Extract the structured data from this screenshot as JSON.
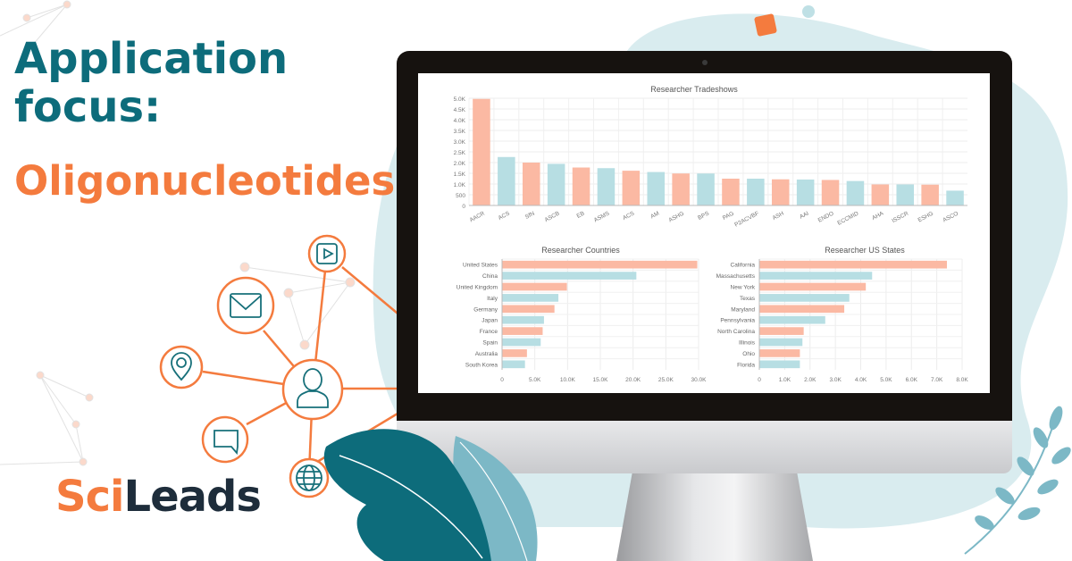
{
  "headline": {
    "line1": "Application",
    "line2": "focus:",
    "line3": "Oligonucleotides"
  },
  "logo": {
    "part1": "Sci",
    "part2": "Leads"
  },
  "icons": [
    "video-play-icon",
    "mail-icon",
    "location-pin-icon",
    "user-icon",
    "chat-bubble-icon",
    "globe-icon"
  ],
  "colors": {
    "teal_dark": "#0d6c7b",
    "orange": "#f47b3e",
    "bar_salmon": "#fbb9a3",
    "bar_teal": "#b7dee3",
    "blob": "#d9ecef"
  },
  "chart_data": [
    {
      "type": "bar",
      "title": "Researcher Tradeshows",
      "orientation": "vertical",
      "categories": [
        "AACR",
        "ACS",
        "SfN",
        "ASCB",
        "EB",
        "ASMS",
        "ACS",
        "AM",
        "ASHG",
        "BPS",
        "PAG",
        "P2ACVBF",
        "ASH",
        "AAI",
        "ENDO",
        "ECCMID",
        "AHA",
        "ISSCR",
        "ESHG",
        "ASCO"
      ],
      "values": [
        4970,
        2260,
        2000,
        1940,
        1770,
        1740,
        1620,
        1560,
        1490,
        1490,
        1250,
        1250,
        1220,
        1210,
        1190,
        1140,
        980,
        980,
        970,
        690
      ],
      "ylim": [
        0,
        5000
      ],
      "yticks": [
        "0",
        "500",
        "1.0K",
        "1.5K",
        "2.0K",
        "2.5K",
        "3.0K",
        "3.5K",
        "4.0K",
        "4.5K",
        "5.0K"
      ],
      "grid": true
    },
    {
      "type": "bar",
      "title": "Researcher Countries",
      "orientation": "horizontal",
      "categories": [
        "United States",
        "China",
        "United Kingdom",
        "Italy",
        "Germany",
        "Japan",
        "France",
        "Spain",
        "Australia",
        "South Korea"
      ],
      "values": [
        29800,
        20500,
        9900,
        8600,
        8000,
        6400,
        6200,
        5900,
        3800,
        3500
      ],
      "xlim": [
        0,
        30000
      ],
      "xticks": [
        "0",
        "5.0K",
        "10.0K",
        "15.0K",
        "20.0K",
        "25.0K",
        "30.0K"
      ],
      "grid": true
    },
    {
      "type": "bar",
      "title": "Researcher US States",
      "orientation": "horizontal",
      "categories": [
        "California",
        "Massachusetts",
        "New York",
        "Texas",
        "Maryland",
        "Pennsylvania",
        "North Carolina",
        "Illinois",
        "Ohio",
        "Florida"
      ],
      "values": [
        7400,
        4450,
        4200,
        3550,
        3350,
        2600,
        1750,
        1700,
        1600,
        1600
      ],
      "xlim": [
        0,
        8000
      ],
      "xticks": [
        "0",
        "1.0K",
        "2.0K",
        "3.0K",
        "4.0K",
        "5.0K",
        "6.0K",
        "7.0K",
        "8.0K"
      ],
      "grid": true
    }
  ]
}
